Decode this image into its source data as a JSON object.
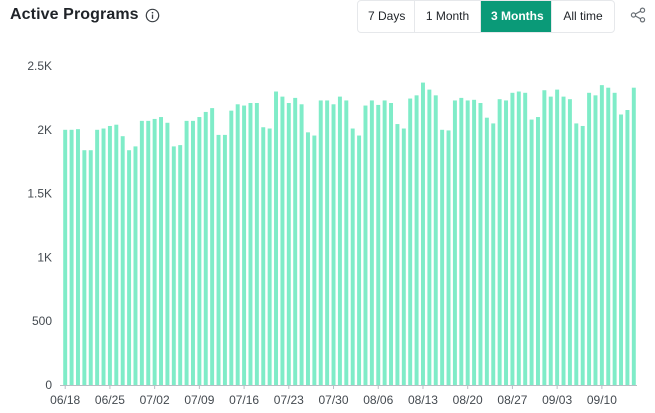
{
  "header": {
    "title": "Active Programs",
    "info_icon": "info-circle-icon",
    "share_icon": "share-icon"
  },
  "range_buttons": [
    {
      "label": "7 Days",
      "active": false
    },
    {
      "label": "1 Month",
      "active": false
    },
    {
      "label": "3 Months",
      "active": true
    },
    {
      "label": "All time",
      "active": false
    }
  ],
  "colors": {
    "bar": "#7fecc8",
    "active_button": "#0a9a78",
    "axis": "#b8bec4"
  },
  "chart_data": {
    "type": "bar",
    "title": "",
    "xlabel": "",
    "ylabel": "",
    "ylim": [
      0,
      2500
    ],
    "yticks": [
      0,
      500,
      1000,
      1500,
      2000,
      2500
    ],
    "ytick_labels": [
      "0",
      "500",
      "1K",
      "1.5K",
      "2K",
      "2.5K"
    ],
    "xtick_labels": [
      "06/18",
      "06/25",
      "07/02",
      "07/09",
      "07/16",
      "07/23",
      "07/30",
      "08/06",
      "08/13",
      "08/20",
      "08/27",
      "09/03",
      "09/10"
    ],
    "xtick_every": 7,
    "grid": false,
    "series": [
      {
        "values": [
          2000,
          2000,
          2005,
          1840,
          1840,
          2000,
          2010,
          2030,
          2040,
          1950,
          1840,
          1870,
          2070,
          2070,
          2085,
          2100,
          2055,
          1870,
          1880,
          2070,
          2070,
          2100,
          2140,
          2170,
          1960,
          1960,
          2150,
          2200,
          2190,
          2210,
          2210,
          2020,
          2010,
          2300,
          2260,
          2210,
          2250,
          2200,
          1980,
          1955,
          2230,
          2230,
          2200,
          2260,
          2230,
          2010,
          1955,
          2190,
          2230,
          2195,
          2230,
          2210,
          2045,
          2010,
          2245,
          2270,
          2370,
          2315,
          2270,
          2000,
          1995,
          2230,
          2250,
          2230,
          2235,
          2210,
          2095,
          2050,
          2240,
          2230,
          2290,
          2300,
          2290,
          2080,
          2100,
          2310,
          2260,
          2315,
          2260,
          2240,
          2050,
          2030,
          2290,
          2270,
          2350,
          2330,
          2290,
          2120,
          2155,
          2330
        ]
      }
    ]
  }
}
